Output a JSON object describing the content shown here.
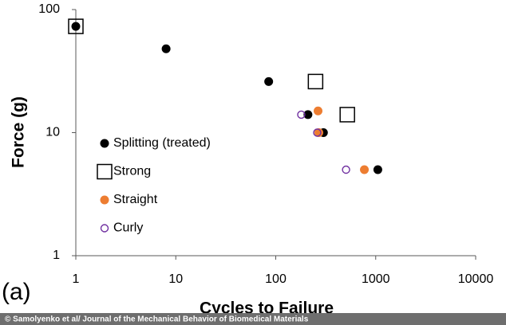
{
  "chart_data": {
    "type": "scatter",
    "x_label": "Cycles to Failure",
    "y_label": "Force (g)",
    "panel_label": "(a)",
    "source": "© Samolyenko et al/ Journal of the Mechanical Behavior of Biomedical Materials",
    "xscale": "log",
    "yscale": "log",
    "xlim": [
      1,
      10000
    ],
    "ylim": [
      1,
      100
    ],
    "xticks": [
      1,
      10,
      100,
      1000,
      10000
    ],
    "yticks": [
      1,
      10,
      100
    ],
    "series": [
      {
        "name": "Splitting (treated)",
        "color": "#000000",
        "marker": "circle",
        "filled": true,
        "x": [
          1,
          8,
          85,
          210,
          300,
          1050
        ],
        "values": [
          73,
          48,
          26,
          14,
          10,
          5
        ]
      },
      {
        "name": "Strong",
        "color": "#000000",
        "marker": "square",
        "filled": false,
        "x": [
          1,
          250,
          520
        ],
        "values": [
          73,
          26,
          14
        ]
      },
      {
        "name": "Straight",
        "color": "#ed7d31",
        "marker": "circle",
        "filled": true,
        "x": [
          265,
          270,
          770
        ],
        "values": [
          15,
          10,
          5
        ]
      },
      {
        "name": "Curly",
        "color": "#7030a0",
        "marker": "circle",
        "filled": false,
        "x": [
          180,
          260,
          505
        ],
        "values": [
          14,
          10,
          5
        ]
      }
    ]
  }
}
